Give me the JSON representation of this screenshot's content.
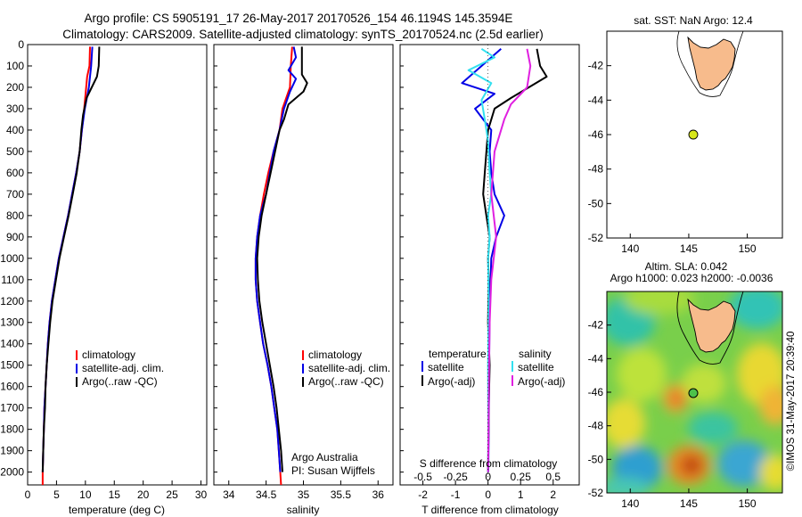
{
  "title": {
    "line1": "Argo profile: CS 5905191_17 26-May-2017 20170526_154 46.1194S 145.3594E",
    "line2": "Climatology: CARS2009. Satellite-adjusted climatology: synTS_20170524.nc (2.5d earlier)"
  },
  "colors": {
    "climatology": "#ff0000",
    "satellite": "#0000e6",
    "argo": "#000000",
    "sat_salinity": "#33e0f0",
    "argo_salinity": "#e020e0",
    "land": "#f7bb8c",
    "float_marker": "#d7e61a"
  },
  "chart_data": [
    {
      "type": "line",
      "xlabel": "temperature (deg C)",
      "xlim": [
        0,
        31
      ],
      "xticks": [
        0,
        5,
        10,
        15,
        20,
        25,
        30
      ],
      "ylim": [
        2060,
        0
      ],
      "yticks": [
        0,
        100,
        200,
        300,
        400,
        500,
        600,
        700,
        800,
        900,
        1000,
        1100,
        1200,
        1300,
        1400,
        1500,
        1600,
        1700,
        1800,
        1900,
        2000
      ],
      "legend": [
        "climatology",
        "satellite-adj. clim.",
        "Argo(..raw -QC)"
      ],
      "series": [
        {
          "name": "climatology",
          "color": "#ff0000",
          "points": [
            [
              10.8,
              10
            ],
            [
              10.7,
              100
            ],
            [
              10.3,
              150
            ],
            [
              9.8,
              300
            ],
            [
              9.4,
              400
            ],
            [
              9.0,
              500
            ],
            [
              8.4,
              600
            ],
            [
              7.7,
              700
            ],
            [
              7.0,
              800
            ],
            [
              6.2,
              900
            ],
            [
              5.4,
              1000
            ],
            [
              4.8,
              1100
            ],
            [
              4.2,
              1200
            ],
            [
              3.8,
              1300
            ],
            [
              3.5,
              1400
            ],
            [
              3.3,
              1500
            ],
            [
              3.1,
              1600
            ],
            [
              2.9,
              1700
            ],
            [
              2.8,
              1800
            ],
            [
              2.7,
              1900
            ],
            [
              2.6,
              2000
            ],
            [
              2.6,
              2060
            ]
          ]
        },
        {
          "name": "satellite-adj. clim.",
          "color": "#0000e6",
          "points": [
            [
              11.2,
              10
            ],
            [
              11.0,
              100
            ],
            [
              10.6,
              200
            ],
            [
              9.9,
              300
            ],
            [
              9.4,
              400
            ],
            [
              9.0,
              500
            ],
            [
              8.4,
              600
            ],
            [
              7.7,
              700
            ],
            [
              7.0,
              800
            ],
            [
              6.2,
              900
            ],
            [
              5.4,
              1000
            ],
            [
              4.8,
              1100
            ],
            [
              4.2,
              1200
            ],
            [
              3.8,
              1300
            ],
            [
              3.5,
              1400
            ],
            [
              3.3,
              1500
            ],
            [
              3.1,
              1600
            ],
            [
              2.9,
              1700
            ],
            [
              2.8,
              1800
            ],
            [
              2.7,
              1900
            ],
            [
              2.6,
              2000
            ]
          ]
        },
        {
          "name": "Argo(..raw -QC)",
          "color": "#000000",
          "points": [
            [
              12.4,
              10
            ],
            [
              12.3,
              100
            ],
            [
              12.0,
              150
            ],
            [
              10.2,
              250
            ],
            [
              9.6,
              330
            ],
            [
              9.3,
              400
            ],
            [
              9.0,
              500
            ],
            [
              8.5,
              600
            ],
            [
              7.8,
              700
            ],
            [
              7.1,
              800
            ],
            [
              6.3,
              900
            ],
            [
              5.5,
              1000
            ],
            [
              4.9,
              1100
            ],
            [
              4.3,
              1200
            ],
            [
              3.9,
              1300
            ],
            [
              3.6,
              1400
            ],
            [
              3.3,
              1500
            ],
            [
              3.1,
              1600
            ],
            [
              3.0,
              1700
            ],
            [
              2.8,
              1800
            ],
            [
              2.7,
              1900
            ],
            [
              2.6,
              2000
            ]
          ]
        }
      ]
    },
    {
      "type": "line",
      "xlabel": "salinity",
      "xlim": [
        33.8,
        36.2
      ],
      "xticks": [
        34,
        34.5,
        35,
        35.5,
        36
      ],
      "ylim": [
        2060,
        0
      ],
      "legend": [
        "climatology",
        "satellite-adj. clim.",
        "Argo(..raw -QC)"
      ],
      "annotation": [
        "Argo Australia",
        "PI: Susan Wijffels"
      ],
      "series": [
        {
          "name": "climatology",
          "color": "#ff0000",
          "points": [
            [
              34.85,
              10
            ],
            [
              34.83,
              100
            ],
            [
              34.82,
              200
            ],
            [
              34.72,
              300
            ],
            [
              34.68,
              400
            ],
            [
              34.6,
              500
            ],
            [
              34.53,
              600
            ],
            [
              34.47,
              700
            ],
            [
              34.42,
              800
            ],
            [
              34.38,
              900
            ],
            [
              34.36,
              1000
            ],
            [
              34.36,
              1100
            ],
            [
              34.38,
              1200
            ],
            [
              34.42,
              1300
            ],
            [
              34.46,
              1400
            ],
            [
              34.52,
              1500
            ],
            [
              34.57,
              1600
            ],
            [
              34.61,
              1700
            ],
            [
              34.65,
              1800
            ],
            [
              34.67,
              1900
            ],
            [
              34.69,
              2000
            ],
            [
              34.7,
              2060
            ]
          ]
        },
        {
          "name": "satellite-adj. clim.",
          "color": "#0000e6",
          "points": [
            [
              34.87,
              10
            ],
            [
              34.9,
              60
            ],
            [
              34.8,
              120
            ],
            [
              34.9,
              160
            ],
            [
              34.82,
              220
            ],
            [
              34.74,
              300
            ],
            [
              34.68,
              400
            ],
            [
              34.6,
              500
            ],
            [
              34.55,
              600
            ],
            [
              34.5,
              700
            ],
            [
              34.42,
              800
            ],
            [
              34.38,
              900
            ],
            [
              34.36,
              1000
            ],
            [
              34.36,
              1100
            ],
            [
              34.38,
              1200
            ],
            [
              34.42,
              1300
            ],
            [
              34.46,
              1400
            ],
            [
              34.52,
              1500
            ],
            [
              34.57,
              1600
            ],
            [
              34.61,
              1700
            ],
            [
              34.65,
              1800
            ],
            [
              34.67,
              1900
            ],
            [
              34.69,
              2000
            ]
          ]
        },
        {
          "name": "Argo(..raw -QC)",
          "color": "#000000",
          "points": [
            [
              34.98,
              10
            ],
            [
              34.98,
              140
            ],
            [
              35.05,
              180
            ],
            [
              35.0,
              220
            ],
            [
              34.8,
              280
            ],
            [
              34.74,
              350
            ],
            [
              34.68,
              400
            ],
            [
              34.62,
              500
            ],
            [
              34.56,
              600
            ],
            [
              34.5,
              700
            ],
            [
              34.44,
              800
            ],
            [
              34.4,
              900
            ],
            [
              34.38,
              1000
            ],
            [
              34.39,
              1100
            ],
            [
              34.41,
              1200
            ],
            [
              34.45,
              1300
            ],
            [
              34.5,
              1400
            ],
            [
              34.55,
              1500
            ],
            [
              34.6,
              1600
            ],
            [
              34.64,
              1700
            ],
            [
              34.67,
              1800
            ],
            [
              34.7,
              1900
            ],
            [
              34.72,
              2000
            ]
          ]
        }
      ]
    },
    {
      "type": "line",
      "xlabel": "T difference from climatology",
      "x2label": "S difference from climatology",
      "xlim": [
        -2.7,
        2.8
      ],
      "xticks": [
        -2,
        -1,
        0,
        1,
        2
      ],
      "x2ticks": [
        -0.5,
        -0.25,
        0,
        0.25,
        0.5
      ],
      "ylim": [
        2060,
        0
      ],
      "legend_title_t": "temperature",
      "legend_title_s": "salinity",
      "legend": [
        "satellite",
        "Argo(-adj)",
        "satellite",
        "Argo(-adj)"
      ],
      "series": [
        {
          "name": "satellite",
          "color": "#0000e6",
          "points": [
            [
              0.4,
              20
            ],
            [
              -0.2,
              100
            ],
            [
              -0.8,
              180
            ],
            [
              0.2,
              230
            ],
            [
              -0.4,
              300
            ],
            [
              0.1,
              400
            ],
            [
              0.05,
              500
            ],
            [
              0.1,
              600
            ],
            [
              0.2,
              700
            ],
            [
              0.5,
              800
            ],
            [
              0.25,
              900
            ],
            [
              0.1,
              1000
            ],
            [
              0.08,
              1100
            ],
            [
              0.05,
              1200
            ],
            [
              0.04,
              1400
            ],
            [
              0.03,
              1600
            ],
            [
              0.02,
              1800
            ],
            [
              0.01,
              2000
            ]
          ]
        },
        {
          "name": "Argo(-adj)",
          "color": "#000000",
          "points": [
            [
              1.5,
              20
            ],
            [
              1.6,
              100
            ],
            [
              1.8,
              150
            ],
            [
              0.7,
              250
            ],
            [
              0.2,
              300
            ],
            [
              0.0,
              400
            ],
            [
              -0.1,
              600
            ],
            [
              -0.15,
              700
            ],
            [
              -0.05,
              800
            ],
            [
              0.05,
              900
            ],
            [
              0.0,
              1000
            ],
            [
              0.02,
              1100
            ],
            [
              0.0,
              1300
            ],
            [
              0.05,
              1500
            ],
            [
              0.02,
              1700
            ],
            [
              0.01,
              1900
            ],
            [
              0.0,
              2000
            ]
          ]
        },
        {
          "name": "satellite",
          "color": "#33e0f0",
          "points": [
            [
              -0.2,
              20
            ],
            [
              0.2,
              60
            ],
            [
              -0.6,
              120
            ],
            [
              0.1,
              180
            ],
            [
              -0.2,
              260
            ],
            [
              -0.1,
              350
            ],
            [
              0.0,
              450
            ],
            [
              0.05,
              600
            ],
            [
              0.1,
              700
            ],
            [
              0.0,
              800
            ],
            [
              0.05,
              900
            ],
            [
              0.0,
              1000
            ],
            [
              0.02,
              1200
            ],
            [
              0.0,
              1500
            ],
            [
              0.01,
              1800
            ],
            [
              0.0,
              2000
            ]
          ]
        },
        {
          "name": "Argo(-adj)",
          "color": "#e020e0",
          "points": [
            [
              1.2,
              20
            ],
            [
              1.3,
              100
            ],
            [
              1.2,
              200
            ],
            [
              0.7,
              280
            ],
            [
              0.5,
              350
            ],
            [
              0.2,
              500
            ],
            [
              0.1,
              700
            ],
            [
              0.25,
              900
            ],
            [
              0.1,
              1100
            ],
            [
              0.05,
              1300
            ],
            [
              0.03,
              1500
            ],
            [
              0.02,
              1700
            ],
            [
              0.01,
              1900
            ],
            [
              0.0,
              2000
            ]
          ]
        }
      ]
    },
    {
      "type": "map",
      "title": "sat. SST: NaN Argo: 12.4",
      "xlim": [
        138,
        153
      ],
      "ylim": [
        -52,
        -40
      ],
      "xticks": [
        140,
        145,
        150
      ],
      "yticks": [
        -42,
        -44,
        -46,
        -48,
        -50,
        -52
      ],
      "float": [
        145.36,
        -46.12
      ]
    },
    {
      "type": "heatmap",
      "title_line1": "Altim. SLA: 0.042",
      "title_line2": "Argo h1000: 0.023 h2000: -0.0036",
      "xlim": [
        138,
        153
      ],
      "ylim": [
        -52,
        -40
      ],
      "xticks": [
        140,
        145,
        150
      ],
      "yticks": [
        -42,
        -44,
        -46,
        -48,
        -50,
        -52
      ],
      "float": [
        145.36,
        -46.12
      ],
      "side_label": "©IMOS 31-May-2017 20:39:40"
    }
  ]
}
